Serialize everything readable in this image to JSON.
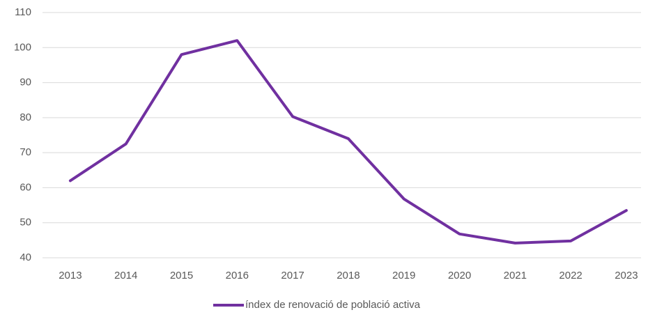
{
  "chart_data": {
    "type": "line",
    "categories": [
      "2013",
      "2014",
      "2015",
      "2016",
      "2017",
      "2018",
      "2019",
      "2020",
      "2021",
      "2022",
      "2023"
    ],
    "series": [
      {
        "name": "índex de renovació de població activa",
        "color": "#7030a0",
        "values": [
          62,
          72.5,
          98,
          102,
          80.3,
          74,
          56.8,
          46.8,
          44.2,
          44.8,
          53.5
        ]
      }
    ],
    "ylim": [
      40,
      110
    ],
    "yticks": [
      40,
      50,
      60,
      70,
      80,
      90,
      100,
      110
    ],
    "grid": true,
    "legend": "bottom"
  }
}
